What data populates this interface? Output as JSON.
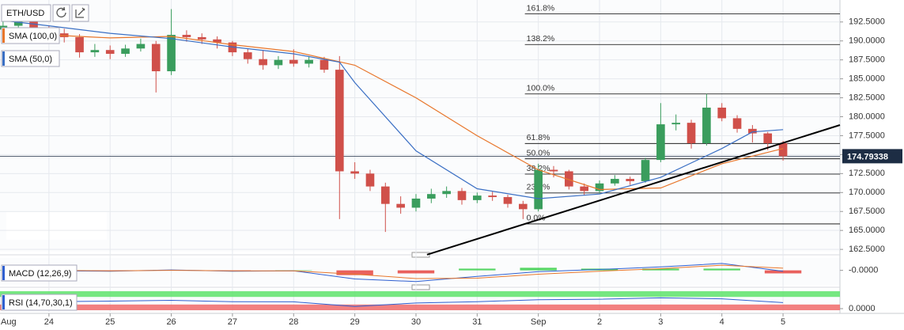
{
  "chart_data": {
    "type": "candlestick",
    "symbol": "ETH/USD",
    "month_label": "Aug",
    "xlim": [
      0.2,
      13.93
    ],
    "xticks": [
      {
        "value": 1,
        "label": "24"
      },
      {
        "value": 2,
        "label": "25"
      },
      {
        "value": 3,
        "label": "26"
      },
      {
        "value": 4,
        "label": "27"
      },
      {
        "value": 5,
        "label": "28"
      },
      {
        "value": 6,
        "label": "29"
      },
      {
        "value": 7,
        "label": "30"
      },
      {
        "value": 8,
        "label": "31"
      },
      {
        "value": 9,
        "label": "Sep"
      },
      {
        "value": 10,
        "label": "2"
      },
      {
        "value": 11,
        "label": "3"
      },
      {
        "value": 12,
        "label": "4"
      },
      {
        "value": 13,
        "label": "5"
      }
    ],
    "ylim": [
      162.2,
      195.4
    ],
    "yticks": [
      {
        "value": 162.5,
        "label": "162.5000"
      },
      {
        "value": 165,
        "label": "165.0000"
      },
      {
        "value": 167.5,
        "label": "167.5000"
      },
      {
        "value": 170,
        "label": "170.0000"
      },
      {
        "value": 172.5,
        "label": "172.5000"
      },
      {
        "value": 175,
        "label": "175.0000"
      },
      {
        "value": 177.5,
        "label": "177.5000"
      },
      {
        "value": 180,
        "label": "180.0000"
      },
      {
        "value": 182.5,
        "label": "182.5000"
      },
      {
        "value": 185,
        "label": "185.0000"
      },
      {
        "value": 187.5,
        "label": "187.5000"
      },
      {
        "value": 190,
        "label": "190.0000"
      },
      {
        "value": 192.5,
        "label": "192.5000"
      }
    ],
    "grid": true,
    "up_color": "#3a9d5d",
    "down_color": "#d0504a",
    "candles": {
      "x": [
        0.25,
        0.5,
        0.75,
        1.0,
        1.25,
        1.5,
        1.75,
        2.0,
        2.25,
        2.5,
        2.75,
        3.0,
        3.25,
        3.5,
        3.75,
        4.0,
        4.25,
        4.5,
        4.75,
        5.0,
        5.25,
        5.5,
        5.75,
        6.0,
        6.25,
        6.5,
        6.75,
        7.0,
        7.25,
        7.5,
        7.75,
        8.0,
        8.25,
        8.5,
        8.75,
        9.0,
        9.25,
        9.5,
        9.75,
        10.0,
        10.25,
        10.5,
        10.75,
        11.0,
        11.25,
        11.5,
        11.75,
        12.0,
        12.25,
        12.5,
        12.75,
        13.0
      ],
      "open": [
        191.5,
        192.0,
        192.8,
        191.5,
        191.0,
        190.5,
        188.5,
        188.8,
        188.3,
        189.0,
        189.6,
        186.0,
        190.8,
        190.5,
        190.2,
        189.8,
        188.5,
        187.6,
        186.8,
        187.5,
        187.0,
        187.5,
        186.2,
        172.8,
        172.5,
        170.8,
        168.5,
        168.0,
        169.2,
        169.8,
        170.2,
        169.0,
        169.6,
        169.4,
        168.5,
        167.8,
        173.0,
        172.8,
        170.8,
        170.2,
        171.2,
        171.8,
        171.5,
        174.3,
        179.0,
        179.2,
        176.5,
        181.2,
        179.8,
        178.4,
        177.8,
        176.5
      ],
      "high": [
        192.8,
        193.5,
        193.0,
        192.0,
        191.6,
        190.9,
        189.6,
        189.4,
        189.5,
        190.3,
        190.0,
        194.2,
        191.4,
        191.0,
        190.6,
        190.0,
        189.0,
        188.8,
        188.0,
        188.9,
        188.0,
        187.9,
        188.0,
        174.0,
        173.0,
        171.3,
        169.5,
        169.8,
        170.5,
        170.8,
        170.6,
        170.0,
        170.1,
        169.7,
        168.9,
        173.8,
        173.5,
        173.0,
        171.2,
        171.6,
        172.3,
        172.1,
        174.6,
        181.8,
        180.3,
        179.6,
        183.0,
        181.8,
        180.2,
        178.9,
        178.0,
        176.8
      ],
      "low": [
        190.9,
        191.8,
        191.0,
        190.2,
        189.8,
        187.8,
        187.9,
        187.6,
        187.9,
        188.6,
        183.2,
        185.5,
        189.9,
        189.6,
        189.0,
        188.0,
        187.0,
        186.2,
        186.3,
        186.6,
        186.5,
        185.8,
        166.5,
        171.8,
        170.2,
        164.8,
        167.2,
        167.5,
        168.6,
        169.3,
        168.4,
        168.6,
        168.9,
        168.0,
        166.5,
        167.5,
        172.0,
        170.4,
        169.6,
        169.9,
        170.9,
        171.0,
        171.3,
        174.0,
        178.2,
        175.8,
        176.2,
        179.4,
        177.9,
        176.6,
        175.6,
        174.2
      ],
      "close": [
        192.0,
        192.8,
        191.5,
        191.0,
        190.5,
        188.5,
        188.8,
        188.3,
        189.0,
        189.6,
        186.0,
        190.8,
        190.5,
        190.2,
        189.8,
        188.5,
        187.6,
        186.8,
        187.5,
        187.0,
        187.5,
        186.2,
        172.8,
        172.5,
        170.8,
        168.5,
        168.0,
        169.2,
        169.8,
        170.2,
        169.0,
        169.6,
        169.4,
        168.5,
        167.8,
        173.0,
        172.8,
        170.8,
        170.2,
        171.2,
        171.8,
        171.5,
        174.3,
        179.0,
        179.2,
        176.5,
        181.2,
        179.8,
        178.4,
        177.8,
        176.5,
        174.79338
      ]
    },
    "last_price": 174.79338,
    "last_price_color": "#1d2d44",
    "series": [
      {
        "name": "SMA (100,0)",
        "color": "#e8762b",
        "x": [
          0.25,
          1,
          2,
          3,
          4,
          5,
          6,
          7,
          8,
          9,
          10,
          11,
          12,
          13
        ],
        "values": [
          190.7,
          190.8,
          190.4,
          190.6,
          189.5,
          188.6,
          186.8,
          182.5,
          177.5,
          173.0,
          170.4,
          170.6,
          173.8,
          175.8
        ]
      },
      {
        "name": "SMA (50,0)",
        "color": "#3a6fc4",
        "x": [
          0.25,
          1,
          2,
          3,
          4,
          5,
          5.75,
          6,
          7,
          8,
          9,
          10,
          11,
          12,
          12.5,
          13
        ],
        "values": [
          192.7,
          192.0,
          191.0,
          190.3,
          189.2,
          188.3,
          187.2,
          184.5,
          175.5,
          170.5,
          169.2,
          169.8,
          172.0,
          175.8,
          178.0,
          178.3
        ]
      }
    ],
    "trendline": {
      "x": [
        7.18,
        13.93
      ],
      "values": [
        161.8,
        178.9
      ],
      "color": "#000000"
    },
    "fibonacci": {
      "x_start": 8.78,
      "color": "#000000",
      "levels": [
        {
          "label": "161.8%",
          "price": 193.57
        },
        {
          "label": "138.2%",
          "price": 189.53
        },
        {
          "label": "100.0%",
          "price": 183.0
        },
        {
          "label": "61.8%",
          "price": 176.47
        },
        {
          "label": "50.0%",
          "price": 174.45
        },
        {
          "label": "38.2%",
          "price": 172.43
        },
        {
          "label": "23.6%",
          "price": 169.94
        },
        {
          "label": "0.0%",
          "price": 165.86
        }
      ]
    },
    "macd": {
      "name": "MACD (12,26,9)",
      "ylim": [
        -3,
        2.5
      ],
      "yticks": [
        {
          "value": 0,
          "label": "-0.0000"
        }
      ],
      "x": [
        0.25,
        1,
        2,
        3,
        4,
        5,
        6,
        7,
        8,
        9,
        10,
        11,
        12,
        13
      ],
      "macd": [
        0.2,
        -0.1,
        -0.2,
        0.1,
        -0.2,
        -0.1,
        -2.0,
        -2.6,
        -1.4,
        -0.3,
        0.2,
        0.8,
        1.6,
        -0.2
      ],
      "signal": [
        0.1,
        0.0,
        -0.1,
        0.0,
        -0.1,
        -0.1,
        -0.9,
        -1.9,
        -1.8,
        -0.9,
        -0.2,
        0.4,
        1.2,
        0.5
      ],
      "hist": [
        0.1,
        -0.1,
        -0.1,
        0.1,
        -0.1,
        0.0,
        -1.1,
        -0.7,
        0.4,
        0.6,
        0.4,
        0.4,
        0.4,
        -0.7
      ],
      "macd_color": "#2f5fd0",
      "signal_color": "#e8762b",
      "up_color": "#2ecc40",
      "down_color": "#e53935"
    },
    "rsi": {
      "name": "RSI (14,70,30,1)",
      "ylim": [
        0,
        100
      ],
      "yticks": [
        {
          "value": 0,
          "label": "0.0000"
        }
      ],
      "upper": 70,
      "lower": 30,
      "upper_color": "#5ee36b",
      "lower_color": "#f06a6a",
      "color": "#2f5fd0",
      "x": [
        0.25,
        1,
        2,
        3,
        4,
        5,
        6,
        7,
        8,
        9,
        10,
        11,
        12,
        13
      ],
      "values": [
        55,
        45,
        48,
        52,
        45,
        44,
        20,
        38,
        45,
        55,
        58,
        65,
        60,
        40
      ]
    }
  }
}
